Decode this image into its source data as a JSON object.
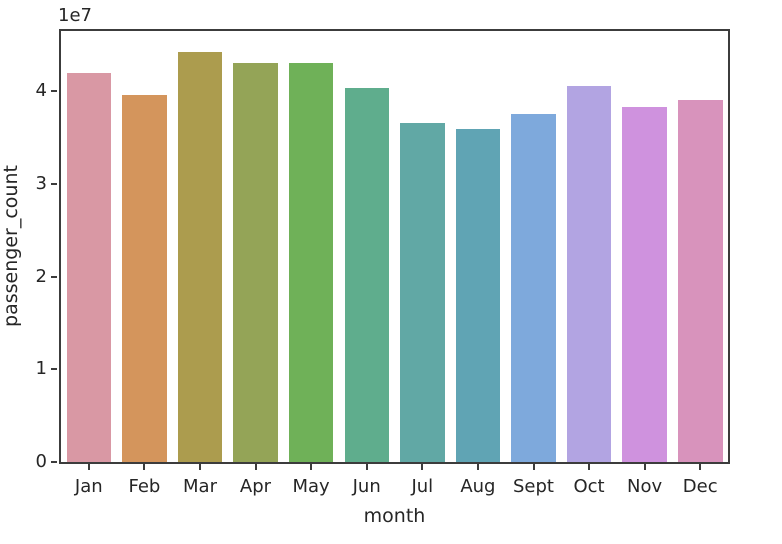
{
  "chart_data": {
    "type": "bar",
    "title": "",
    "xlabel": "month",
    "ylabel": "passenger_count",
    "offset_text": "1e7",
    "categories": [
      "Jan",
      "Feb",
      "Mar",
      "Apr",
      "May",
      "Jun",
      "Jul",
      "Aug",
      "Sept",
      "Oct",
      "Nov",
      "Dec"
    ],
    "values": [
      42000000,
      39600000,
      44200000,
      43100000,
      43000000,
      40400000,
      36600000,
      35900000,
      37500000,
      40600000,
      38300000,
      39100000
    ],
    "bar_colors": [
      "#d998a4",
      "#d4955c",
      "#ac9c4e",
      "#94a457",
      "#6fb158",
      "#5fad8d",
      "#61a8a5",
      "#60a4b4",
      "#7ea9dc",
      "#b2a4e2",
      "#cf92de",
      "#d893bc"
    ],
    "yticks": [
      0,
      1,
      2,
      3,
      4
    ],
    "ytick_scale": 10000000,
    "ylim": [
      0,
      46500000
    ],
    "bar_fraction": 0.8,
    "grid": false,
    "legend": null
  },
  "style": {
    "spine_color": "#3c3c3c",
    "text_color": "#262626",
    "background": "#ffffff"
  }
}
